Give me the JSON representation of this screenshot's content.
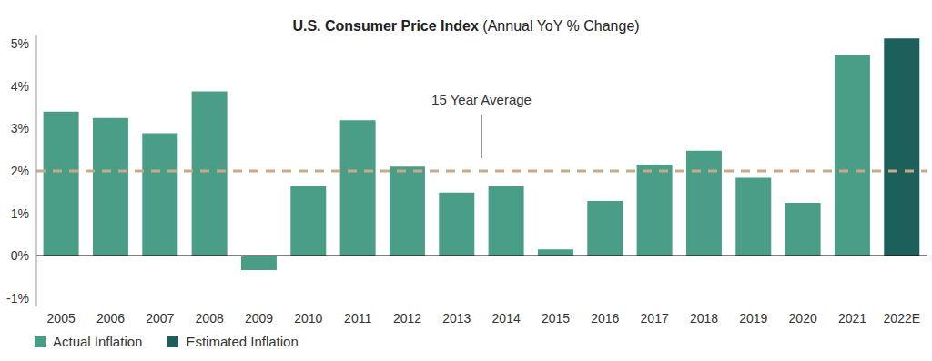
{
  "chart_data": {
    "type": "bar",
    "title": "U.S. Consumer Price Index",
    "subtitle": "(Annual YoY % Change)",
    "categories": [
      "2005",
      "2006",
      "2007",
      "2008",
      "2009",
      "2010",
      "2011",
      "2012",
      "2013",
      "2014",
      "2015",
      "2016",
      "2017",
      "2018",
      "2019",
      "2020",
      "2021",
      "2022E"
    ],
    "series": [
      {
        "name": "Actual Inflation",
        "color": "#4a9e88",
        "values": [
          3.4,
          3.25,
          2.89,
          3.88,
          -0.34,
          1.64,
          3.2,
          2.1,
          1.49,
          1.64,
          0.15,
          1.29,
          2.15,
          2.48,
          1.84,
          1.25,
          4.74,
          null
        ]
      },
      {
        "name": "Estimated Inflation",
        "color": "#1d5f5a",
        "values": [
          null,
          null,
          null,
          null,
          null,
          null,
          null,
          null,
          null,
          null,
          null,
          null,
          null,
          null,
          null,
          null,
          null,
          5.13
        ]
      }
    ],
    "ylim": [
      -1.2,
      5.2
    ],
    "yticks": [
      {
        "value": -1,
        "label": "-1%"
      },
      {
        "value": 0,
        "label": "0%"
      },
      {
        "value": 1,
        "label": "1%"
      },
      {
        "value": 2,
        "label": "2%"
      },
      {
        "value": 3,
        "label": "3%"
      },
      {
        "value": 4,
        "label": "4%"
      },
      {
        "value": 5,
        "label": "5%"
      }
    ],
    "grid": false,
    "stacked": true,
    "legend": "bottom-left",
    "annotations": [
      {
        "type": "hline",
        "y": 2,
        "text": "15 Year Average",
        "color": "#c9a98a"
      }
    ]
  }
}
